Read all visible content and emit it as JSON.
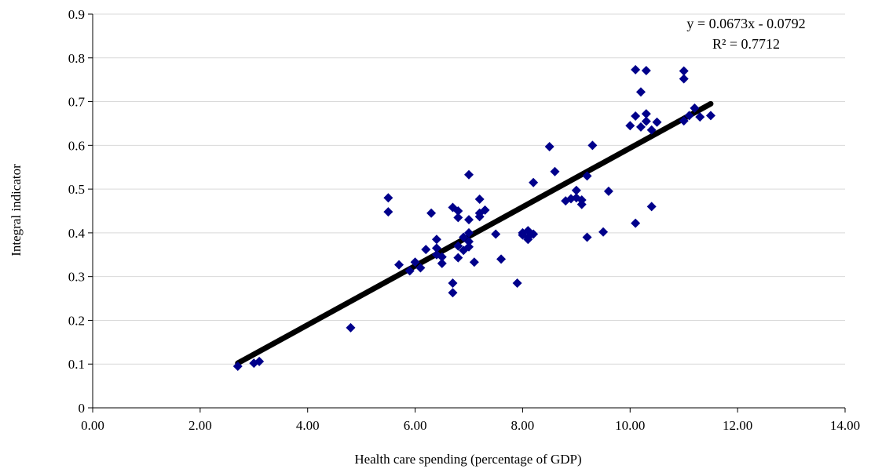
{
  "chart_data": {
    "type": "scatter",
    "title": "",
    "xlabel": "Health care spending (percentage of GDP)",
    "ylabel": "Integral indicator",
    "xlim": [
      0,
      14
    ],
    "ylim": [
      0,
      0.9
    ],
    "x_ticks": [
      "0.00",
      "2.00",
      "4.00",
      "6.00",
      "8.00",
      "10.00",
      "12.00",
      "14.00"
    ],
    "y_ticks": [
      "0",
      "0.1",
      "0.2",
      "0.3",
      "0.4",
      "0.5",
      "0.6",
      "0.7",
      "0.8",
      "0.9"
    ],
    "grid": "horizontal",
    "legend": "none",
    "marker_color": "#00008B",
    "trendline_color": "#000000",
    "series": [
      {
        "points": [
          [
            2.7,
            0.095
          ],
          [
            3.0,
            0.102
          ],
          [
            3.1,
            0.106
          ],
          [
            4.8,
            0.183
          ],
          [
            5.5,
            0.48
          ],
          [
            5.5,
            0.448
          ],
          [
            5.7,
            0.327
          ],
          [
            5.9,
            0.313
          ],
          [
            6.0,
            0.333
          ],
          [
            6.1,
            0.32
          ],
          [
            6.2,
            0.362
          ],
          [
            6.3,
            0.445
          ],
          [
            6.4,
            0.385
          ],
          [
            6.4,
            0.365
          ],
          [
            6.4,
            0.35
          ],
          [
            6.5,
            0.345
          ],
          [
            6.5,
            0.33
          ],
          [
            6.7,
            0.458
          ],
          [
            6.7,
            0.285
          ],
          [
            6.7,
            0.263
          ],
          [
            6.8,
            0.45
          ],
          [
            6.8,
            0.435
          ],
          [
            6.8,
            0.37
          ],
          [
            6.8,
            0.343
          ],
          [
            6.9,
            0.39
          ],
          [
            6.9,
            0.36
          ],
          [
            7.0,
            0.533
          ],
          [
            7.0,
            0.43
          ],
          [
            7.0,
            0.4
          ],
          [
            7.0,
            0.38
          ],
          [
            7.0,
            0.368
          ],
          [
            7.1,
            0.333
          ],
          [
            7.2,
            0.477
          ],
          [
            7.2,
            0.445
          ],
          [
            7.2,
            0.437
          ],
          [
            7.3,
            0.452
          ],
          [
            7.5,
            0.397
          ],
          [
            7.6,
            0.34
          ],
          [
            7.9,
            0.285
          ],
          [
            8.0,
            0.4
          ],
          [
            8.0,
            0.395
          ],
          [
            8.1,
            0.405
          ],
          [
            8.1,
            0.39
          ],
          [
            8.1,
            0.385
          ],
          [
            8.2,
            0.515
          ],
          [
            8.2,
            0.397
          ],
          [
            8.5,
            0.597
          ],
          [
            8.6,
            0.54
          ],
          [
            8.8,
            0.473
          ],
          [
            8.9,
            0.478
          ],
          [
            9.0,
            0.497
          ],
          [
            9.0,
            0.48
          ],
          [
            9.1,
            0.475
          ],
          [
            9.1,
            0.465
          ],
          [
            9.2,
            0.53
          ],
          [
            9.2,
            0.39
          ],
          [
            9.3,
            0.6
          ],
          [
            9.5,
            0.402
          ],
          [
            9.6,
            0.495
          ],
          [
            10.0,
            0.645
          ],
          [
            10.1,
            0.773
          ],
          [
            10.1,
            0.667
          ],
          [
            10.1,
            0.422
          ],
          [
            10.2,
            0.722
          ],
          [
            10.2,
            0.642
          ],
          [
            10.3,
            0.771
          ],
          [
            10.3,
            0.672
          ],
          [
            10.3,
            0.655
          ],
          [
            10.4,
            0.635
          ],
          [
            10.4,
            0.46
          ],
          [
            10.5,
            0.653
          ],
          [
            11.0,
            0.77
          ],
          [
            11.0,
            0.752
          ],
          [
            11.0,
            0.656
          ],
          [
            11.1,
            0.668
          ],
          [
            11.2,
            0.685
          ],
          [
            11.3,
            0.665
          ],
          [
            11.5,
            0.668
          ]
        ]
      }
    ],
    "trendline": {
      "x": [
        2.7,
        11.5
      ],
      "y": [
        0.102,
        0.695
      ],
      "equation": "y = 0.0673x - 0.0792",
      "r_squared": "R² = 0.7712"
    }
  }
}
